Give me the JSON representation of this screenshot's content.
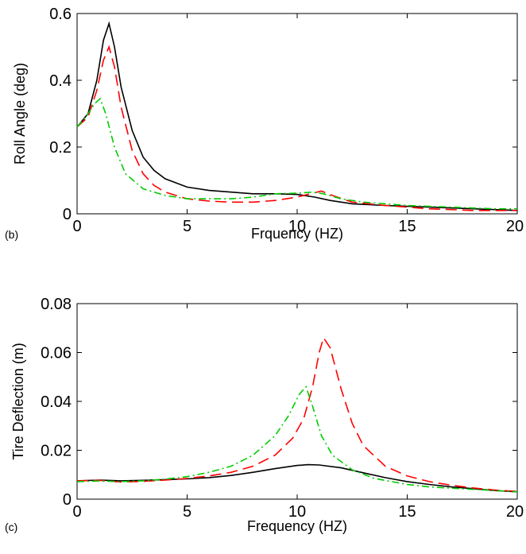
{
  "chart_data": [
    {
      "type": "line",
      "panel_label": "(b)",
      "xlabel": "Frquency (HZ)",
      "ylabel": "Roll Angle (deg)",
      "xlim": [
        0,
        20
      ],
      "ylim": [
        0,
        0.6
      ],
      "xticks": [
        0,
        5,
        10,
        15,
        20
      ],
      "yticks": [
        0,
        0.2,
        0.4,
        0.6
      ],
      "ytick_labels": [
        "0",
        "0.2",
        "0.4",
        "0.6"
      ],
      "grid": false,
      "legend": "none",
      "series": [
        {
          "color": "#000000",
          "style": "solid",
          "points": [
            [
              0,
              0.26
            ],
            [
              0.5,
              0.3
            ],
            [
              0.9,
              0.4
            ],
            [
              1.2,
              0.52
            ],
            [
              1.45,
              0.57
            ],
            [
              1.7,
              0.5
            ],
            [
              2.0,
              0.38
            ],
            [
              2.5,
              0.25
            ],
            [
              3,
              0.17
            ],
            [
              3.5,
              0.13
            ],
            [
              4,
              0.105
            ],
            [
              5,
              0.08
            ],
            [
              6,
              0.07
            ],
            [
              7,
              0.065
            ],
            [
              8,
              0.06
            ],
            [
              9,
              0.06
            ],
            [
              10,
              0.058
            ],
            [
              10.8,
              0.05
            ],
            [
              11.5,
              0.04
            ],
            [
              12.5,
              0.03
            ],
            [
              14,
              0.025
            ],
            [
              16,
              0.02
            ],
            [
              18,
              0.015
            ],
            [
              20,
              0.01
            ]
          ]
        },
        {
          "color": "#ff0000",
          "style": "dashed",
          "points": [
            [
              0,
              0.26
            ],
            [
              0.5,
              0.29
            ],
            [
              0.9,
              0.37
            ],
            [
              1.2,
              0.46
            ],
            [
              1.45,
              0.5
            ],
            [
              1.7,
              0.44
            ],
            [
              2.0,
              0.32
            ],
            [
              2.5,
              0.19
            ],
            [
              3,
              0.12
            ],
            [
              3.5,
              0.085
            ],
            [
              4,
              0.065
            ],
            [
              5,
              0.045
            ],
            [
              6,
              0.038
            ],
            [
              7,
              0.035
            ],
            [
              8,
              0.035
            ],
            [
              9,
              0.04
            ],
            [
              10,
              0.05
            ],
            [
              10.6,
              0.06
            ],
            [
              11.1,
              0.068
            ],
            [
              11.6,
              0.055
            ],
            [
              12.5,
              0.035
            ],
            [
              14,
              0.025
            ],
            [
              16,
              0.015
            ],
            [
              18,
              0.01
            ],
            [
              20,
              0.01
            ]
          ]
        },
        {
          "color": "#00cc00",
          "style": "dashdot",
          "points": [
            [
              0,
              0.26
            ],
            [
              0.4,
              0.29
            ],
            [
              0.8,
              0.33
            ],
            [
              1.05,
              0.345
            ],
            [
              1.3,
              0.3
            ],
            [
              1.7,
              0.2
            ],
            [
              2.2,
              0.12
            ],
            [
              3,
              0.075
            ],
            [
              4,
              0.055
            ],
            [
              5,
              0.045
            ],
            [
              6,
              0.045
            ],
            [
              7,
              0.045
            ],
            [
              8,
              0.05
            ],
            [
              9,
              0.06
            ],
            [
              10,
              0.062
            ],
            [
              10.7,
              0.065
            ],
            [
              11.2,
              0.06
            ],
            [
              12,
              0.045
            ],
            [
              13,
              0.035
            ],
            [
              15,
              0.025
            ],
            [
              17,
              0.02
            ],
            [
              19,
              0.015
            ],
            [
              20,
              0.015
            ]
          ]
        }
      ]
    },
    {
      "type": "line",
      "panel_label": "(c)",
      "xlabel": "Frequency (HZ)",
      "ylabel": "Tire Deflection (m)",
      "xlim": [
        0,
        20
      ],
      "ylim": [
        0,
        0.08
      ],
      "xticks": [
        0,
        5,
        10,
        15,
        20
      ],
      "yticks": [
        0,
        0.02,
        0.04,
        0.06,
        0.08
      ],
      "ytick_labels": [
        "0",
        "0.02",
        "0.04",
        "0.06",
        "0.08"
      ],
      "grid": false,
      "legend": "none",
      "series": [
        {
          "color": "#000000",
          "style": "solid",
          "points": [
            [
              0,
              0.0075
            ],
            [
              1,
              0.0078
            ],
            [
              2,
              0.0075
            ],
            [
              3,
              0.0077
            ],
            [
              4,
              0.008
            ],
            [
              5,
              0.0083
            ],
            [
              6,
              0.0088
            ],
            [
              7,
              0.0097
            ],
            [
              8,
              0.011
            ],
            [
              9,
              0.0125
            ],
            [
              10,
              0.0138
            ],
            [
              10.5,
              0.0141
            ],
            [
              11,
              0.014
            ],
            [
              12,
              0.0128
            ],
            [
              13,
              0.0108
            ],
            [
              14,
              0.0088
            ],
            [
              15,
              0.0072
            ],
            [
              16,
              0.006
            ],
            [
              17,
              0.005
            ],
            [
              18,
              0.0043
            ],
            [
              19,
              0.0035
            ],
            [
              20,
              0.003
            ]
          ]
        },
        {
          "color": "#ff0000",
          "style": "dashed",
          "points": [
            [
              0,
              0.0075
            ],
            [
              1,
              0.0077
            ],
            [
              2,
              0.007
            ],
            [
              3,
              0.0073
            ],
            [
              4,
              0.0078
            ],
            [
              5,
              0.0085
            ],
            [
              6,
              0.0095
            ],
            [
              7,
              0.011
            ],
            [
              8,
              0.0135
            ],
            [
              9,
              0.018
            ],
            [
              9.8,
              0.025
            ],
            [
              10.3,
              0.033
            ],
            [
              10.7,
              0.046
            ],
            [
              11.0,
              0.06
            ],
            [
              11.2,
              0.066
            ],
            [
              11.5,
              0.062
            ],
            [
              12.0,
              0.045
            ],
            [
              12.5,
              0.031
            ],
            [
              13,
              0.022
            ],
            [
              14,
              0.0135
            ],
            [
              15,
              0.0095
            ],
            [
              16,
              0.0072
            ],
            [
              17,
              0.0057
            ],
            [
              18,
              0.0046
            ],
            [
              19,
              0.0037
            ],
            [
              20,
              0.0032
            ]
          ]
        },
        {
          "color": "#00cc00",
          "style": "dashdot",
          "points": [
            [
              0,
              0.0072
            ],
            [
              1,
              0.0074
            ],
            [
              2,
              0.0072
            ],
            [
              3,
              0.0075
            ],
            [
              4,
              0.0082
            ],
            [
              5,
              0.0092
            ],
            [
              6,
              0.011
            ],
            [
              7,
              0.0135
            ],
            [
              8,
              0.018
            ],
            [
              9,
              0.026
            ],
            [
              9.6,
              0.034
            ],
            [
              10.1,
              0.043
            ],
            [
              10.4,
              0.046
            ],
            [
              10.7,
              0.038
            ],
            [
              11.1,
              0.026
            ],
            [
              11.6,
              0.018
            ],
            [
              12.5,
              0.012
            ],
            [
              13.5,
              0.0085
            ],
            [
              15,
              0.006
            ],
            [
              16,
              0.005
            ],
            [
              17,
              0.0045
            ],
            [
              18,
              0.004
            ],
            [
              19,
              0.0035
            ],
            [
              20,
              0.003
            ]
          ]
        }
      ]
    }
  ]
}
